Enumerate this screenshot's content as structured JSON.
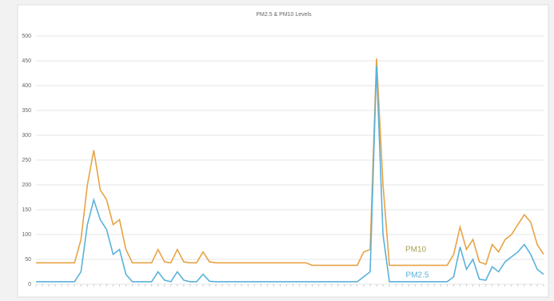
{
  "chart_data": {
    "type": "line",
    "title": "PM2.5 & PM10 Levels",
    "categories": [
      null,
      null,
      null,
      null,
      null,
      null,
      null,
      null,
      null,
      null,
      null,
      null,
      null,
      null,
      null,
      null,
      null,
      null,
      null,
      null,
      null,
      null,
      null,
      null,
      null,
      null,
      null,
      null,
      null,
      null,
      null,
      null,
      null,
      null,
      null,
      null,
      null,
      null,
      null,
      null,
      null,
      null,
      null,
      null,
      null,
      null,
      null,
      null,
      null,
      null,
      null,
      null,
      null,
      null,
      null,
      null,
      null,
      null,
      null,
      null,
      null,
      null,
      null,
      null,
      null,
      null,
      null,
      null,
      null,
      null,
      null,
      null,
      null,
      null,
      null,
      null,
      null,
      null,
      null,
      null
    ],
    "series": [
      {
        "name": "PM10",
        "color": "#e8a345",
        "label_color": "#a8a050",
        "values": [
          43,
          43,
          43,
          43,
          43,
          43,
          43,
          90,
          200,
          270,
          190,
          170,
          120,
          130,
          70,
          43,
          43,
          43,
          43,
          70,
          45,
          43,
          70,
          45,
          43,
          43,
          65,
          45,
          43,
          43,
          43,
          43,
          43,
          43,
          43,
          43,
          43,
          43,
          43,
          43,
          43,
          43,
          43,
          38,
          38,
          38,
          38,
          38,
          38,
          38,
          38,
          65,
          70,
          455,
          200,
          38,
          38,
          38,
          38,
          38,
          38,
          38,
          38,
          38,
          38,
          60,
          115,
          70,
          90,
          45,
          40,
          80,
          65,
          90,
          100,
          120,
          140,
          125,
          80,
          60
        ]
      },
      {
        "name": "PM2.5",
        "color": "#5ab2da",
        "label_color": "#5ab2da",
        "values": [
          5,
          5,
          5,
          5,
          5,
          5,
          5,
          25,
          120,
          170,
          130,
          110,
          60,
          70,
          20,
          5,
          5,
          5,
          5,
          25,
          8,
          5,
          25,
          8,
          5,
          5,
          20,
          6,
          5,
          5,
          5,
          5,
          5,
          5,
          5,
          5,
          5,
          5,
          5,
          5,
          5,
          5,
          5,
          5,
          5,
          5,
          5,
          5,
          5,
          5,
          5,
          15,
          25,
          440,
          100,
          5,
          5,
          5,
          5,
          5,
          5,
          5,
          5,
          5,
          5,
          15,
          75,
          30,
          50,
          10,
          8,
          35,
          25,
          45,
          55,
          65,
          80,
          60,
          30,
          20
        ]
      }
    ],
    "ylim": [
      0,
      500
    ],
    "yticks": [
      0,
      50,
      100,
      150,
      200,
      250,
      300,
      350,
      400,
      450,
      500
    ],
    "grid": true
  }
}
